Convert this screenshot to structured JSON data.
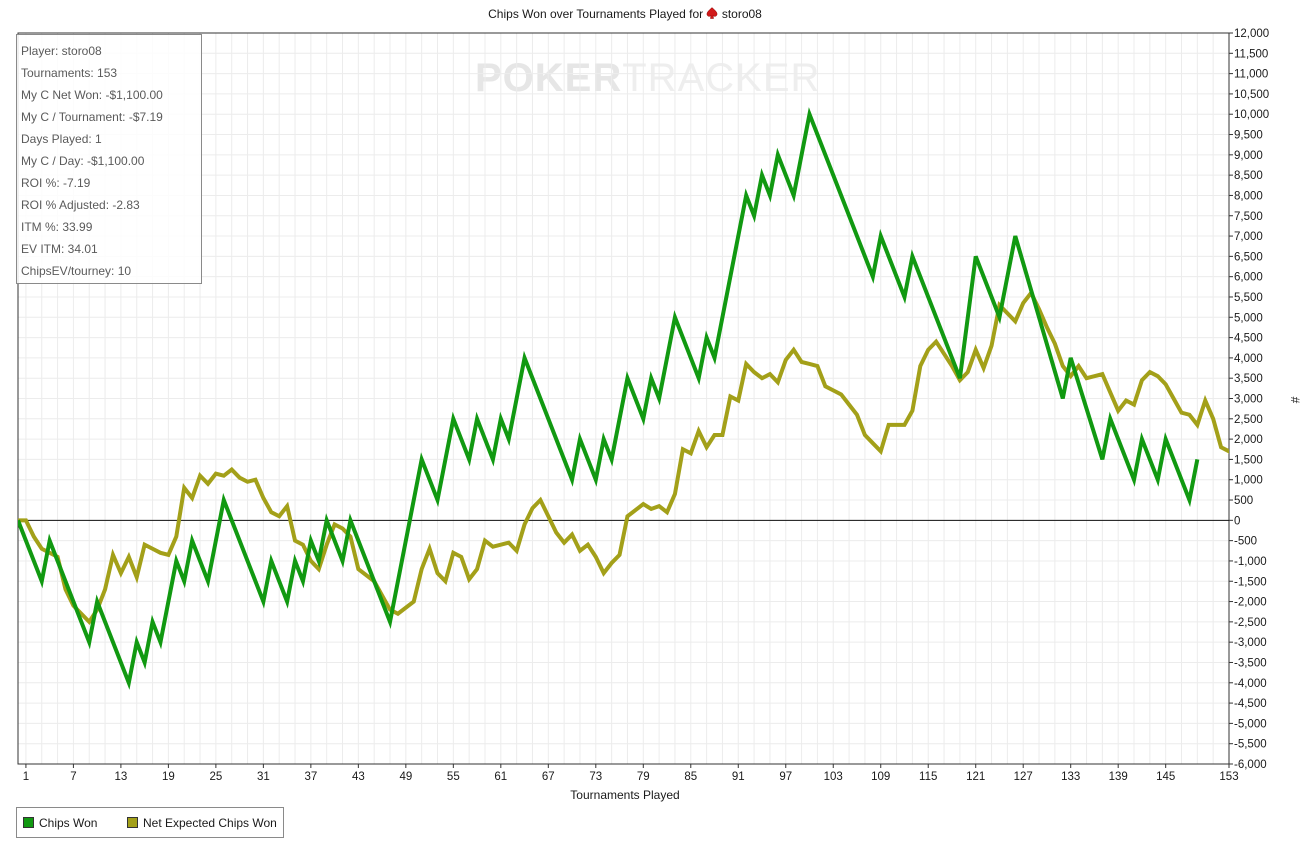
{
  "title": {
    "prefix": "Chips Won over Tournaments Played for",
    "player": "storo08"
  },
  "stats": [
    "Player: storo08",
    "Tournaments: 153",
    "My C Net Won: -$1,100.00",
    "My C / Tournament: -$7.19",
    "Days Played: 1",
    "My C / Day: -$1,100.00",
    "ROI %: -7.19",
    "ROI % Adjusted: -2.83",
    "ITM %: 33.99",
    "EV ITM: 34.01",
    "ChipsEV/tourney: 10"
  ],
  "watermark": {
    "left": "POKER",
    "right": "TRACKER"
  },
  "legend": [
    {
      "label": "Chips Won",
      "color": "#119911"
    },
    {
      "label": "Net Expected Chips Won",
      "color": "#a3a019"
    }
  ],
  "chart_data": {
    "type": "line",
    "xlabel": "Tournaments Played",
    "ylabel": "#",
    "xlim": [
      0,
      153
    ],
    "ylim": [
      -6000,
      12000
    ],
    "x_ticks": [
      1,
      7,
      13,
      19,
      25,
      31,
      37,
      43,
      49,
      55,
      61,
      67,
      73,
      79,
      85,
      91,
      97,
      103,
      109,
      115,
      121,
      127,
      133,
      139,
      145,
      153
    ],
    "y_ticks": [
      -6000,
      -5500,
      -5000,
      -4500,
      -4000,
      -3500,
      -3000,
      -2500,
      -2000,
      -1500,
      -1000,
      -500,
      0,
      500,
      1000,
      1500,
      2000,
      2500,
      3000,
      3500,
      4000,
      4500,
      5000,
      5500,
      6000,
      6500,
      7000,
      7500,
      8000,
      8500,
      9000,
      9500,
      10000,
      10500,
      11000,
      11500,
      12000
    ],
    "y_tick_labels": [
      "-6,000",
      "-5,500",
      "-5,000",
      "-4,500",
      "-4,000",
      "-3,500",
      "-3,000",
      "-2,500",
      "-2,000",
      "-1,500",
      "-1,000",
      "-500",
      "0",
      "500",
      "1,000",
      "1,500",
      "2,000",
      "2,500",
      "3,000",
      "3,500",
      "4,000",
      "4,500",
      "5,000",
      "5,500",
      "6,000",
      "6,500",
      "7,000",
      "7,500",
      "8,000",
      "8,500",
      "9,000",
      "9,500",
      "10,000",
      "10,500",
      "11,000",
      "11,500",
      "12,000"
    ],
    "grid": true,
    "series": [
      {
        "name": "Chips Won",
        "color": "#119911",
        "points": [
          [
            0,
            0
          ],
          [
            3,
            -1500
          ],
          [
            4,
            -500
          ],
          [
            9,
            -3000
          ],
          [
            10,
            -2000
          ],
          [
            14,
            -4000
          ],
          [
            15,
            -3000
          ],
          [
            16,
            -3500
          ],
          [
            17,
            -2500
          ],
          [
            18,
            -3000
          ],
          [
            20,
            -1000
          ],
          [
            21,
            -1500
          ],
          [
            22,
            -500
          ],
          [
            24,
            -1500
          ],
          [
            26,
            500
          ],
          [
            31,
            -2000
          ],
          [
            32,
            -1000
          ],
          [
            34,
            -2000
          ],
          [
            35,
            -1000
          ],
          [
            36,
            -1500
          ],
          [
            37,
            -500
          ],
          [
            38,
            -1000
          ],
          [
            39,
            0
          ],
          [
            41,
            -1000
          ],
          [
            42,
            0
          ],
          [
            47,
            -2500
          ],
          [
            51,
            1500
          ],
          [
            53,
            500
          ],
          [
            55,
            2500
          ],
          [
            57,
            1500
          ],
          [
            58,
            2500
          ],
          [
            60,
            1500
          ],
          [
            61,
            2500
          ],
          [
            62,
            2000
          ],
          [
            64,
            4000
          ],
          [
            70,
            1000
          ],
          [
            71,
            2000
          ],
          [
            73,
            1000
          ],
          [
            74,
            2000
          ],
          [
            75,
            1500
          ],
          [
            77,
            3500
          ],
          [
            79,
            2500
          ],
          [
            80,
            3500
          ],
          [
            81,
            3000
          ],
          [
            83,
            5000
          ],
          [
            86,
            3500
          ],
          [
            87,
            4500
          ],
          [
            88,
            4000
          ],
          [
            92,
            8000
          ],
          [
            93,
            7500
          ],
          [
            94,
            8500
          ],
          [
            95,
            8000
          ],
          [
            96,
            9000
          ],
          [
            98,
            8000
          ],
          [
            100,
            10000
          ],
          [
            108,
            6000
          ],
          [
            109,
            7000
          ],
          [
            112,
            5500
          ],
          [
            113,
            6500
          ],
          [
            119,
            3500
          ],
          [
            121,
            6500
          ],
          [
            124,
            5000
          ],
          [
            126,
            7000
          ],
          [
            132,
            3000
          ],
          [
            133,
            4000
          ],
          [
            137,
            1500
          ],
          [
            138,
            2500
          ],
          [
            141,
            1000
          ],
          [
            142,
            2000
          ],
          [
            144,
            1000
          ],
          [
            145,
            2000
          ],
          [
            148,
            500
          ],
          [
            149,
            1500
          ]
        ]
      },
      {
        "name": "Net Expected Chips Won",
        "color": "#a3a019",
        "points": [
          [
            0,
            0
          ],
          [
            1,
            0
          ],
          [
            2,
            -400
          ],
          [
            3,
            -700
          ],
          [
            5,
            -900
          ],
          [
            6,
            -1700
          ],
          [
            7,
            -2100
          ],
          [
            9,
            -2500
          ],
          [
            10,
            -2200
          ],
          [
            11,
            -1700
          ],
          [
            12,
            -850
          ],
          [
            13,
            -1300
          ],
          [
            14,
            -900
          ],
          [
            15,
            -1400
          ],
          [
            16,
            -600
          ],
          [
            17,
            -700
          ],
          [
            18,
            -800
          ],
          [
            19,
            -850
          ],
          [
            20,
            -400
          ],
          [
            21,
            800
          ],
          [
            22,
            550
          ],
          [
            23,
            1100
          ],
          [
            24,
            900
          ],
          [
            25,
            1150
          ],
          [
            26,
            1100
          ],
          [
            27,
            1250
          ],
          [
            28,
            1050
          ],
          [
            29,
            950
          ],
          [
            30,
            1000
          ],
          [
            31,
            550
          ],
          [
            32,
            200
          ],
          [
            33,
            100
          ],
          [
            34,
            350
          ],
          [
            35,
            -500
          ],
          [
            36,
            -600
          ],
          [
            37,
            -1000
          ],
          [
            38,
            -1200
          ],
          [
            39,
            -600
          ],
          [
            40,
            -100
          ],
          [
            41,
            -200
          ],
          [
            42,
            -400
          ],
          [
            43,
            -1200
          ],
          [
            45,
            -1500
          ],
          [
            46,
            -1850
          ],
          [
            47,
            -2200
          ],
          [
            48,
            -2300
          ],
          [
            50,
            -2000
          ],
          [
            51,
            -1200
          ],
          [
            52,
            -700
          ],
          [
            53,
            -1300
          ],
          [
            54,
            -1500
          ],
          [
            55,
            -800
          ],
          [
            56,
            -900
          ],
          [
            57,
            -1450
          ],
          [
            58,
            -1200
          ],
          [
            59,
            -500
          ],
          [
            60,
            -650
          ],
          [
            61,
            -600
          ],
          [
            62,
            -550
          ],
          [
            63,
            -750
          ],
          [
            64,
            -100
          ],
          [
            65,
            300
          ],
          [
            66,
            500
          ],
          [
            67,
            100
          ],
          [
            68,
            -300
          ],
          [
            69,
            -550
          ],
          [
            70,
            -350
          ],
          [
            71,
            -750
          ],
          [
            72,
            -600
          ],
          [
            73,
            -900
          ],
          [
            74,
            -1300
          ],
          [
            75,
            -1050
          ],
          [
            76,
            -850
          ],
          [
            77,
            100
          ],
          [
            78,
            250
          ],
          [
            79,
            400
          ],
          [
            80,
            280
          ],
          [
            81,
            350
          ],
          [
            82,
            200
          ],
          [
            83,
            650
          ],
          [
            84,
            1750
          ],
          [
            85,
            1650
          ],
          [
            86,
            2200
          ],
          [
            87,
            1800
          ],
          [
            88,
            2100
          ],
          [
            89,
            2100
          ],
          [
            90,
            3050
          ],
          [
            91,
            2950
          ],
          [
            92,
            3850
          ],
          [
            93,
            3650
          ],
          [
            94,
            3500
          ],
          [
            95,
            3600
          ],
          [
            96,
            3400
          ],
          [
            97,
            3950
          ],
          [
            98,
            4200
          ],
          [
            99,
            3900
          ],
          [
            100,
            3850
          ],
          [
            101,
            3800
          ],
          [
            102,
            3300
          ],
          [
            103,
            3200
          ],
          [
            104,
            3100
          ],
          [
            105,
            2850
          ],
          [
            106,
            2600
          ],
          [
            107,
            2100
          ],
          [
            108,
            1900
          ],
          [
            109,
            1700
          ],
          [
            110,
            2350
          ],
          [
            111,
            2350
          ],
          [
            112,
            2350
          ],
          [
            113,
            2700
          ],
          [
            114,
            3800
          ],
          [
            115,
            4200
          ],
          [
            116,
            4400
          ],
          [
            117,
            4100
          ],
          [
            118,
            3800
          ],
          [
            119,
            3450
          ],
          [
            120,
            3650
          ],
          [
            121,
            4200
          ],
          [
            122,
            3750
          ],
          [
            123,
            4300
          ],
          [
            124,
            5300
          ],
          [
            125,
            5100
          ],
          [
            126,
            4900
          ],
          [
            127,
            5350
          ],
          [
            128,
            5600
          ],
          [
            129,
            5200
          ],
          [
            130,
            4750
          ],
          [
            131,
            4350
          ],
          [
            132,
            3800
          ],
          [
            133,
            3550
          ],
          [
            134,
            3800
          ],
          [
            135,
            3500
          ],
          [
            136,
            3550
          ],
          [
            137,
            3600
          ],
          [
            138,
            3150
          ],
          [
            139,
            2700
          ],
          [
            140,
            2950
          ],
          [
            141,
            2850
          ],
          [
            142,
            3450
          ],
          [
            143,
            3650
          ],
          [
            144,
            3550
          ],
          [
            145,
            3350
          ],
          [
            146,
            3000
          ],
          [
            147,
            2650
          ],
          [
            148,
            2600
          ],
          [
            149,
            2350
          ],
          [
            150,
            2950
          ],
          [
            151,
            2500
          ],
          [
            152,
            1800
          ],
          [
            153,
            1700
          ],
          [
            154,
            1550
          ]
        ]
      }
    ]
  }
}
